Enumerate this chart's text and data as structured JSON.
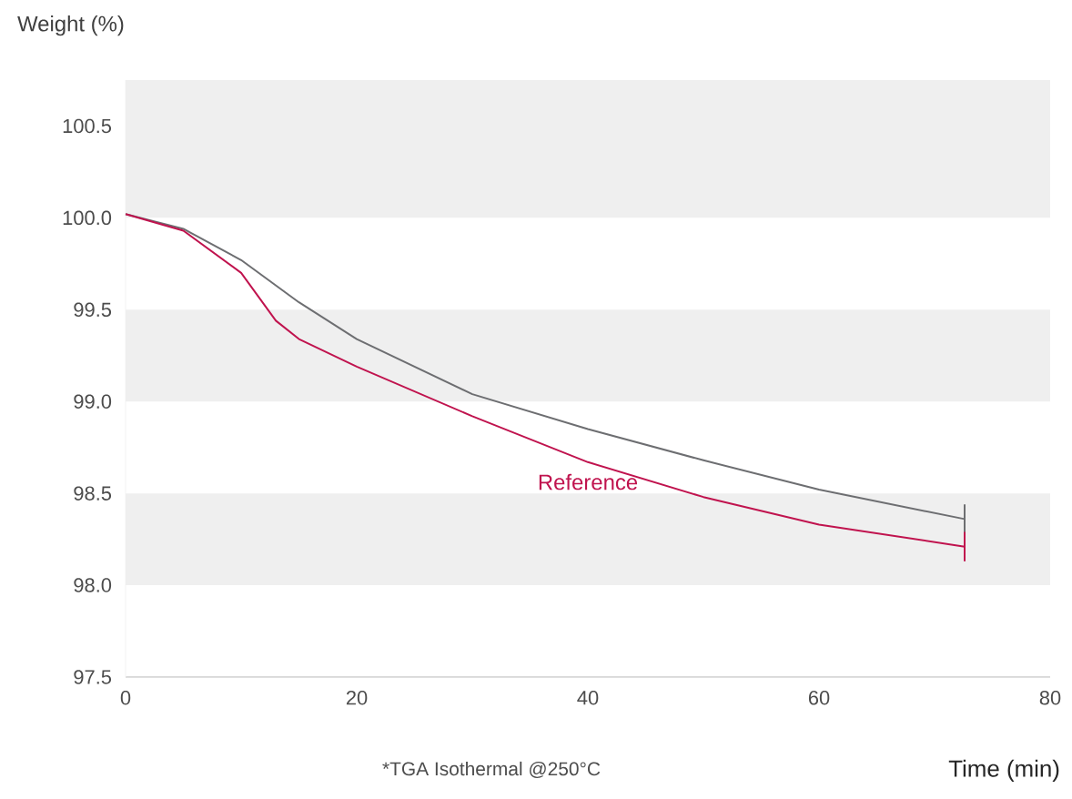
{
  "chart_data": {
    "type": "line",
    "xlabel": "Time (min)",
    "ylabel": "Weight (%)",
    "xlim": [
      0,
      80
    ],
    "xticks": [
      0,
      20,
      40,
      60,
      80
    ],
    "ylim": [
      97.5,
      100.75
    ],
    "yticks": [
      97.5,
      {
        "value": 98,
        "label": "98.0"
      },
      98.5,
      {
        "value": 99,
        "label": "99.0"
      },
      99.5,
      {
        "value": 100,
        "label": "100.0"
      },
      100.5
    ],
    "bands": [
      {
        "axis": "y",
        "from": 100.0,
        "to": 100.75,
        "color": "#efefef"
      },
      {
        "axis": "y",
        "from": 99.0,
        "to": 99.5,
        "color": "#efefef"
      },
      {
        "axis": "y",
        "from": 98.0,
        "to": 98.5,
        "color": "#efefef"
      }
    ],
    "series": [
      {
        "color": "#6d6e71",
        "x": [
          0,
          5,
          10,
          15,
          20,
          30,
          40,
          50,
          60,
          72.6
        ],
        "values": [
          100.02,
          99.94,
          99.77,
          99.54,
          99.34,
          99.04,
          98.85,
          98.68,
          98.52,
          98.36
        ],
        "errors": [
          null,
          null,
          null,
          null,
          null,
          null,
          null,
          null,
          null,
          0.08
        ]
      },
      {
        "name": "Reference",
        "color": "#c0134e",
        "x": [
          0,
          5,
          10,
          13,
          15,
          20,
          30,
          40,
          50,
          60,
          72.6
        ],
        "values": [
          100.02,
          99.93,
          99.7,
          99.44,
          99.34,
          99.19,
          98.92,
          98.67,
          98.48,
          98.33,
          98.21
        ],
        "errors": [
          null,
          null,
          null,
          null,
          null,
          null,
          null,
          null,
          null,
          null,
          0.08
        ]
      }
    ],
    "annotations": [
      "*TGA Isothermal @250°C"
    ],
    "grid": false,
    "legend": false,
    "marker": "none",
    "line_style": "solid"
  }
}
